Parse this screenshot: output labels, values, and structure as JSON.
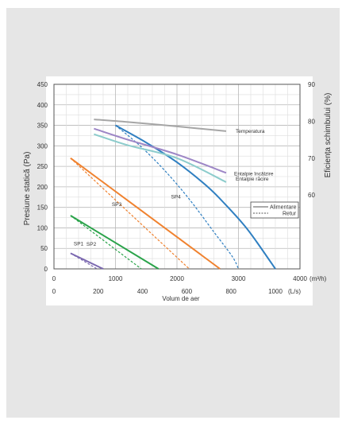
{
  "chart_data": {
    "type": "line",
    "ylabel": "Presiune statică (Pa)",
    "y2label": "Eficiența schimbului (%)",
    "xlabel": "Volum de aer",
    "x_unit_top": "(m³/h)",
    "x_unit_bottom": "(L/s)",
    "y_ticks": [
      "450",
      "400",
      "350",
      "300",
      "250",
      "200",
      "150",
      "100",
      "50",
      "0"
    ],
    "y2_ticks": [
      "90",
      "80",
      "70",
      "60"
    ],
    "x_top_ticks": [
      "0",
      "1000",
      "2000",
      "3000",
      "4000"
    ],
    "x_bottom_ticks": [
      "0",
      "200",
      "400",
      "600",
      "800",
      "1000"
    ],
    "xlim": [
      0,
      4000
    ],
    "ylim": [
      0,
      450
    ],
    "y2lim": [
      40,
      90
    ],
    "grid": true,
    "legend": {
      "position": "right-middle",
      "solid_label": "Alimentare",
      "dashed_label": "Retur"
    },
    "colors": {
      "purple": "#7b68b0",
      "green": "#2aa34a",
      "orange": "#f0822f",
      "blue": "#2f7fc1",
      "gray": "#a6a6a6",
      "lavender": "#9d86c6",
      "teal": "#8ccccc"
    },
    "series": [
      {
        "name": "SP1",
        "color_key": "purple",
        "line": "solid",
        "x": [
          270,
          800
        ],
        "y": [
          38,
          0
        ]
      },
      {
        "name": "SP1",
        "color_key": "purple",
        "line": "dashed",
        "x": [
          270,
          700
        ],
        "y": [
          38,
          0
        ]
      },
      {
        "name": "SP2",
        "color_key": "green",
        "line": "solid",
        "x": [
          270,
          1700
        ],
        "y": [
          130,
          0
        ]
      },
      {
        "name": "SP2",
        "color_key": "green",
        "line": "dashed",
        "x": [
          270,
          1420
        ],
        "y": [
          130,
          0
        ]
      },
      {
        "name": "SP3",
        "color_key": "orange",
        "line": "solid",
        "x": [
          270,
          2700
        ],
        "y": [
          270,
          0
        ]
      },
      {
        "name": "SP3",
        "color_key": "orange",
        "line": "dashed",
        "x": [
          270,
          2200
        ],
        "y": [
          270,
          0
        ]
      },
      {
        "name": "SP4",
        "color_key": "blue",
        "line": "solid",
        "x": [
          1000,
          1500,
          2000,
          2500,
          2800,
          3100,
          3300,
          3600
        ],
        "y": [
          350,
          308,
          260,
          200,
          155,
          105,
          65,
          0
        ]
      },
      {
        "name": "SP4",
        "color_key": "blue",
        "line": "dashed",
        "x": [
          1000,
          1400,
          1800,
          2200,
          2600,
          2900,
          3000
        ],
        "y": [
          350,
          300,
          240,
          170,
          90,
          30,
          0
        ]
      },
      {
        "name": "Temperatura",
        "color_key": "gray",
        "line": "solid",
        "axis": "right",
        "x": [
          650,
          1200,
          2000,
          2800
        ],
        "y": [
          80.5,
          79.8,
          78.6,
          77.3
        ]
      },
      {
        "name": "Entalpie încălzire",
        "color_key": "lavender",
        "line": "solid",
        "axis": "right",
        "x": [
          650,
          1200,
          2000,
          2800
        ],
        "y": [
          78,
          75,
          71,
          66
        ]
      },
      {
        "name": "Entalpie răcire",
        "color_key": "teal",
        "line": "solid",
        "axis": "right",
        "x": [
          650,
          1200,
          2000,
          2800
        ],
        "y": [
          76.5,
          73.5,
          70,
          63.5
        ]
      }
    ],
    "curve_labels": [
      {
        "text": "SP1",
        "series": 0
      },
      {
        "text": "SP2",
        "series": 2
      },
      {
        "text": "SP3",
        "series": 4
      },
      {
        "text": "SP4",
        "series": 6
      },
      {
        "text": "Temperatura",
        "series": 8
      },
      {
        "text": "Entalpie încălzire",
        "series": 9
      },
      {
        "text": "Entalpie răcire",
        "series": 10
      }
    ]
  }
}
